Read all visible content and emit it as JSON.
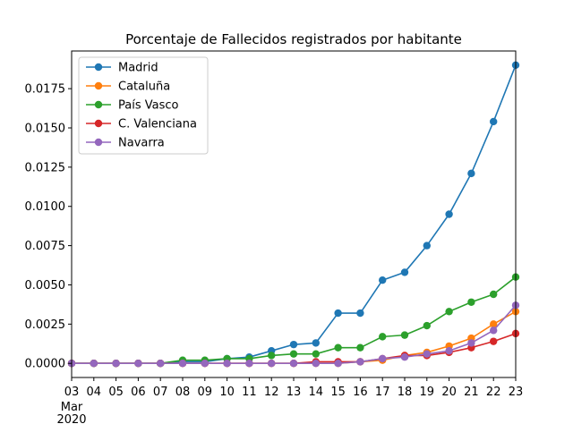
{
  "chart_data": {
    "type": "line",
    "title": "Porcentaje de Fallecidos registrados por habitante",
    "xlabel": "",
    "ylabel": "",
    "x": [
      "03",
      "04",
      "05",
      "06",
      "07",
      "08",
      "09",
      "10",
      "11",
      "12",
      "13",
      "14",
      "15",
      "16",
      "17",
      "18",
      "19",
      "20",
      "21",
      "22",
      "23"
    ],
    "x_secondary_labels": [
      "Mar",
      "2020"
    ],
    "ylim": [
      -0.0009,
      0.0199
    ],
    "y_ticks": [
      "0.0000",
      "0.0025",
      "0.0050",
      "0.0075",
      "0.0100",
      "0.0125",
      "0.0150",
      "0.0175"
    ],
    "y_tick_values": [
      0,
      0.0025,
      0.005,
      0.0075,
      0.01,
      0.0125,
      0.015,
      0.0175
    ],
    "grid": false,
    "legend_position": "top-left",
    "series": [
      {
        "name": "Madrid",
        "color": "#1f77b4",
        "values": [
          0,
          0,
          0,
          0,
          0,
          0.0001,
          0.0001,
          0.0003,
          0.0004,
          0.0008,
          0.0012,
          0.0013,
          0.0032,
          0.0032,
          0.0053,
          0.0058,
          0.0075,
          0.0095,
          0.0121,
          0.0154,
          0.019
        ]
      },
      {
        "name": "Cataluña",
        "color": "#ff7f0e",
        "values": [
          0,
          0,
          0,
          0,
          0,
          0,
          0,
          0,
          0,
          0,
          0,
          0,
          0,
          0.0001,
          0.0002,
          0.0005,
          0.0007,
          0.0011,
          0.0016,
          0.0025,
          0.0033
        ]
      },
      {
        "name": "País Vasco",
        "color": "#2ca02c",
        "values": [
          0,
          0,
          0,
          0,
          0,
          0.0002,
          0.0002,
          0.0003,
          0.0003,
          0.0005,
          0.0006,
          0.0006,
          0.001,
          0.001,
          0.0017,
          0.0018,
          0.0024,
          0.0033,
          0.0039,
          0.0044,
          0.0055
        ]
      },
      {
        "name": "C. Valenciana",
        "color": "#d62728",
        "values": [
          0,
          0,
          0,
          0,
          0,
          0,
          0,
          0,
          0,
          0,
          0,
          0.0001,
          0.0001,
          0.0001,
          0.0003,
          0.0005,
          0.0005,
          0.0007,
          0.001,
          0.0014,
          0.0019
        ]
      },
      {
        "name": "Navarra",
        "color": "#9467bd",
        "values": [
          0,
          0,
          0,
          0,
          0,
          0,
          0,
          0,
          0,
          0,
          0,
          0,
          0,
          0.0001,
          0.0003,
          0.0004,
          0.0006,
          0.0008,
          0.0013,
          0.0021,
          0.0037
        ]
      }
    ]
  }
}
